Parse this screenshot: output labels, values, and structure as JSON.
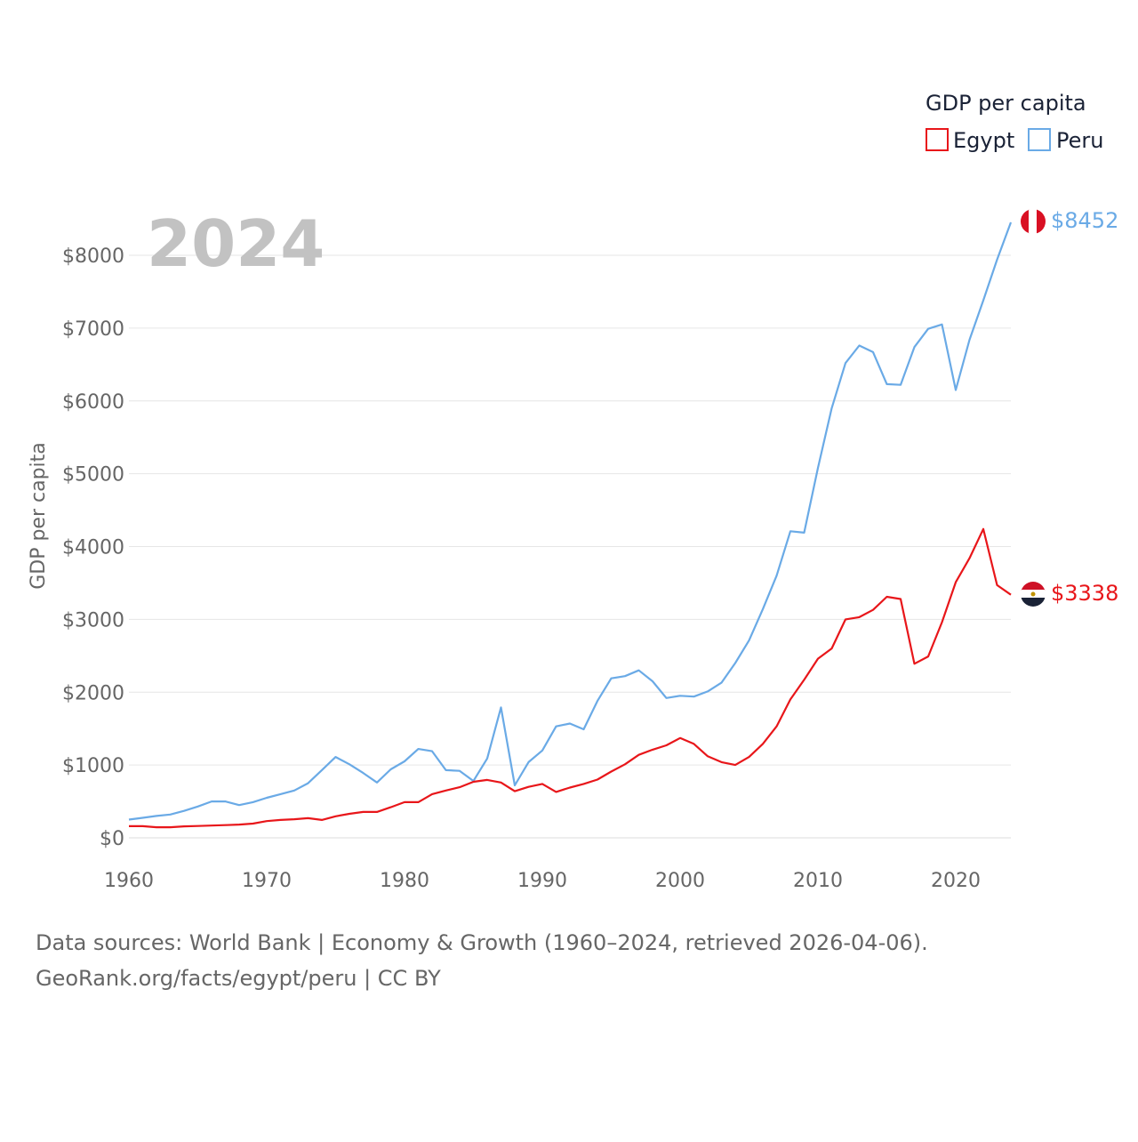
{
  "year_label": "2024",
  "legend": {
    "title": "GDP per capita",
    "items": [
      {
        "name": "Egypt",
        "color": "#e8161a"
      },
      {
        "name": "Peru",
        "color": "#6aaae6"
      }
    ]
  },
  "end_labels": {
    "egypt": "$3338",
    "peru": "$8452"
  },
  "footer": {
    "line1": "Data sources: World Bank | Economy & Growth (1960–2024, retrieved 2026-04-06).",
    "line2": "GeoRank.org/facts/egypt/peru | CC BY"
  },
  "chart_data": {
    "type": "line",
    "title": "",
    "xlabel": "",
    "ylabel": "GDP per capita",
    "xlim": [
      1960,
      2024
    ],
    "ylim": [
      0,
      8000
    ],
    "x_ticks": [
      1960,
      1970,
      1980,
      1990,
      2000,
      2010,
      2020
    ],
    "x_tick_labels": [
      "1960",
      "1970",
      "1980",
      "1990",
      "2000",
      "2010",
      "2020"
    ],
    "y_ticks": [
      0,
      1000,
      2000,
      3000,
      4000,
      5000,
      6000,
      7000,
      8000
    ],
    "y_tick_labels": [
      "$0",
      "$1000",
      "$2000",
      "$3000",
      "$4000",
      "$5000",
      "$6000",
      "$7000",
      "$8000"
    ],
    "grid": true,
    "x": [
      1960,
      1961,
      1962,
      1963,
      1964,
      1965,
      1966,
      1967,
      1968,
      1969,
      1970,
      1971,
      1972,
      1973,
      1974,
      1975,
      1976,
      1977,
      1978,
      1979,
      1980,
      1981,
      1982,
      1983,
      1984,
      1985,
      1986,
      1987,
      1988,
      1989,
      1990,
      1991,
      1992,
      1993,
      1994,
      1995,
      1996,
      1997,
      1998,
      1999,
      2000,
      2001,
      2002,
      2003,
      2004,
      2005,
      2006,
      2007,
      2008,
      2009,
      2010,
      2011,
      2012,
      2013,
      2014,
      2015,
      2016,
      2017,
      2018,
      2019,
      2020,
      2021,
      2022,
      2023,
      2024
    ],
    "series": [
      {
        "name": "Egypt",
        "color": "#e8161a",
        "values": [
          160,
          160,
          145,
          145,
          158,
          162,
          168,
          175,
          182,
          195,
          230,
          245,
          255,
          270,
          245,
          295,
          330,
          355,
          355,
          420,
          490,
          490,
          600,
          650,
          695,
          770,
          795,
          760,
          640,
          700,
          740,
          630,
          690,
          740,
          800,
          910,
          1010,
          1140,
          1210,
          1270,
          1370,
          1290,
          1120,
          1040,
          1000,
          1110,
          1290,
          1530,
          1900,
          2170,
          2460,
          2600,
          3000,
          3030,
          3130,
          3310,
          3280,
          2390,
          2490,
          2960,
          3510,
          3840,
          4240,
          3470,
          3338
        ]
      },
      {
        "name": "Peru",
        "color": "#6aaae6",
        "values": [
          250,
          275,
          300,
          320,
          370,
          430,
          500,
          500,
          450,
          490,
          550,
          600,
          650,
          750,
          930,
          1110,
          1010,
          890,
          760,
          940,
          1050,
          1220,
          1190,
          930,
          920,
          780,
          1090,
          1790,
          720,
          1040,
          1200,
          1530,
          1570,
          1490,
          1880,
          2190,
          2220,
          2300,
          2150,
          1920,
          1950,
          1940,
          2010,
          2130,
          2400,
          2710,
          3140,
          3600,
          4210,
          4190,
          5080,
          5900,
          6520,
          6760,
          6670,
          6230,
          6220,
          6740,
          6990,
          7050,
          6150,
          6840,
          7380,
          7940,
          8452
        ]
      }
    ]
  }
}
